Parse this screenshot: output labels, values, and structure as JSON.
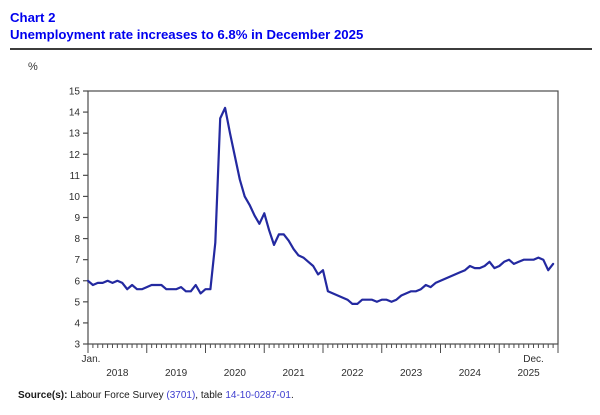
{
  "header": {
    "chart_label": "Chart 2",
    "title": "Unemployment rate increases to 6.8% in December 2025"
  },
  "y_axis": {
    "unit_label": "%",
    "tick_labels": [
      "15",
      "14",
      "13",
      "12",
      "11",
      "10",
      "9",
      "8",
      "7",
      "6",
      "5",
      "4",
      "3"
    ]
  },
  "x_axis": {
    "first_month_label": "Jan.",
    "last_month_label": "Dec.",
    "year_labels": [
      "2018",
      "2019",
      "2020",
      "2021",
      "2022",
      "2023",
      "2024",
      "2025"
    ]
  },
  "source": {
    "prefix": "Source(s):",
    "segments": [
      {
        "text": " Labour Force Survey ",
        "link": false
      },
      {
        "text": "(3701)",
        "link": true
      },
      {
        "text": ", table ",
        "link": false
      },
      {
        "text": "14-10-0287-01",
        "link": true
      },
      {
        "text": ".",
        "link": false
      }
    ]
  },
  "colors": {
    "title_blue": "#0000ee",
    "line_blue": "#2329a0",
    "link_blue": "#3d3dcf",
    "axis_gray": "#4b4b4b"
  },
  "chart_data": {
    "type": "line",
    "title": "Unemployment rate increases to 6.8% in December 2025",
    "ylabel": "%",
    "ylim": [
      3,
      15
    ],
    "y_ticks": [
      3,
      4,
      5,
      6,
      7,
      8,
      9,
      10,
      11,
      12,
      13,
      14,
      15
    ],
    "x_start": "Jan 2018",
    "x_end": "Dec 2025",
    "frequency": "monthly",
    "x_years": [
      "2018",
      "2019",
      "2020",
      "2021",
      "2022",
      "2023",
      "2024",
      "2025"
    ],
    "grid": false,
    "legend": "none",
    "series": [
      {
        "name": "Unemployment rate (%)",
        "monthly_values_by_year": {
          "2018": [
            6.0,
            5.8,
            5.9,
            5.9,
            6.0,
            5.9,
            6.0,
            5.9,
            5.6,
            5.8,
            5.6,
            5.6
          ],
          "2019": [
            5.7,
            5.8,
            5.8,
            5.8,
            5.6,
            5.6,
            5.6,
            5.7,
            5.5,
            5.5,
            5.8,
            5.4
          ],
          "2020": [
            5.6,
            5.6,
            7.8,
            13.7,
            14.2,
            13.0,
            11.9,
            10.8,
            10.0,
            9.6,
            9.1,
            8.7
          ],
          "2021": [
            9.2,
            8.4,
            7.7,
            8.2,
            8.2,
            7.9,
            7.5,
            7.2,
            7.1,
            6.9,
            6.7,
            6.3
          ],
          "2022": [
            6.5,
            5.5,
            5.4,
            5.3,
            5.2,
            5.1,
            4.9,
            4.9,
            5.1,
            5.1,
            5.1,
            5.0
          ],
          "2023": [
            5.1,
            5.1,
            5.0,
            5.1,
            5.3,
            5.4,
            5.5,
            5.5,
            5.6,
            5.8,
            5.7,
            5.9
          ],
          "2024": [
            6.0,
            6.1,
            6.2,
            6.3,
            6.4,
            6.5,
            6.7,
            6.6,
            6.6,
            6.7,
            6.9,
            6.6
          ],
          "2025": [
            6.7,
            6.9,
            7.0,
            6.8,
            6.9,
            7.0,
            7.0,
            7.0,
            7.1,
            7.0,
            6.5,
            6.8
          ]
        }
      }
    ],
    "highlight": {
      "label": "December 2025",
      "value": 6.8
    }
  }
}
